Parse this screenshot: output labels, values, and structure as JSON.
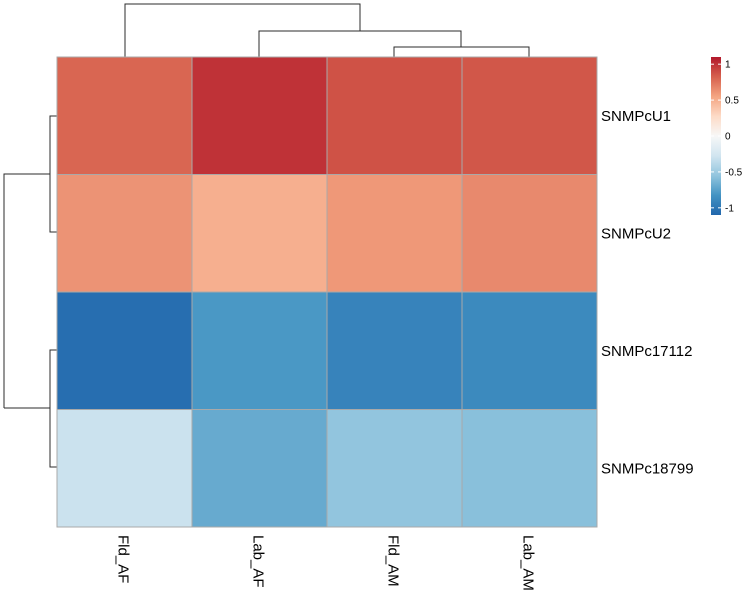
{
  "chart_data": {
    "type": "heatmap",
    "rows": [
      "SNMPcU1",
      "SNMPcU2",
      "SNMPc17112",
      "SNMPc18799"
    ],
    "columns": [
      "Fld_AF",
      "Lab_AF",
      "Fld_AM",
      "Lab_AM"
    ],
    "values": [
      [
        0.8,
        1.0,
        0.88,
        0.86
      ],
      [
        0.62,
        0.5,
        0.6,
        0.66
      ],
      [
        -1.05,
        -0.8,
        -0.92,
        -0.88
      ],
      [
        -0.3,
        -0.7,
        -0.55,
        -0.58
      ]
    ],
    "color_scale": {
      "min": -1.1,
      "max": 1.1,
      "stops": [
        "#2166ac",
        "#4393c3",
        "#92c5de",
        "#d1e5f0",
        "#f7f7f7",
        "#fddbc7",
        "#f4a582",
        "#d6604d",
        "#b2182b"
      ]
    },
    "legend": {
      "position": "top-right",
      "ticks": [
        {
          "value": 1,
          "label": "1"
        },
        {
          "value": 0.5,
          "label": "0.5"
        },
        {
          "value": 0,
          "label": "0"
        },
        {
          "value": -0.5,
          "label": "-0.5"
        },
        {
          "value": -1,
          "label": "-1"
        }
      ]
    },
    "dendrograms": {
      "columns": "top",
      "rows": "left"
    }
  }
}
